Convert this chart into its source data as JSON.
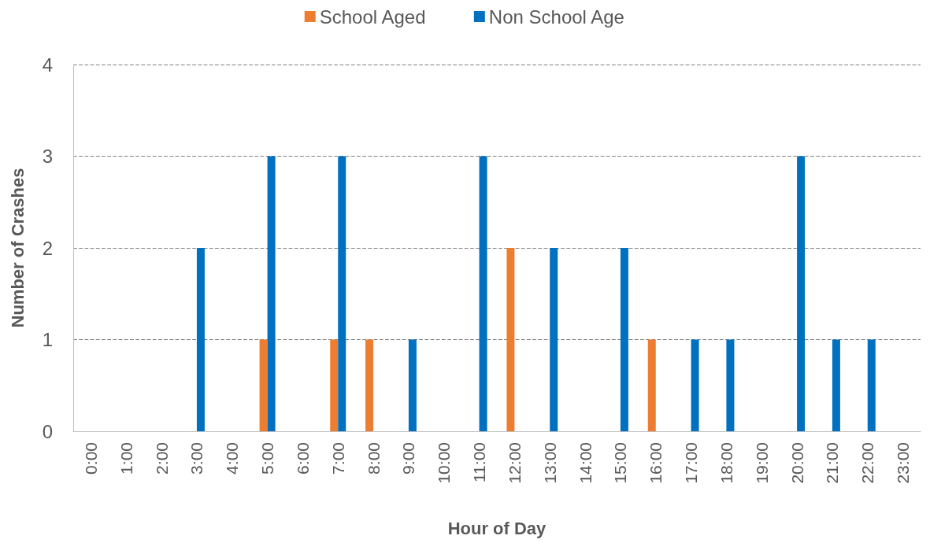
{
  "chart_data": {
    "type": "bar",
    "categories": [
      "0:00",
      "1:00",
      "2:00",
      "3:00",
      "4:00",
      "5:00",
      "6:00",
      "7:00",
      "8:00",
      "9:00",
      "10:00",
      "11:00",
      "12:00",
      "13:00",
      "14:00",
      "15:00",
      "16:00",
      "17:00",
      "18:00",
      "19:00",
      "20:00",
      "21:00",
      "22:00",
      "23:00"
    ],
    "series": [
      {
        "name": "School Aged",
        "color": "#ed7d31",
        "values": [
          0,
          0,
          0,
          0,
          0,
          1,
          0,
          1,
          1,
          0,
          0,
          0,
          2,
          0,
          0,
          0,
          1,
          0,
          0,
          0,
          0,
          0,
          0,
          0
        ]
      },
      {
        "name": "Non School Age",
        "color": "#0070c0",
        "values": [
          0,
          0,
          0,
          2,
          0,
          3,
          0,
          3,
          0,
          1,
          0,
          3,
          0,
          2,
          0,
          2,
          0,
          1,
          1,
          0,
          3,
          1,
          1,
          0
        ]
      }
    ],
    "xlabel": "Hour of Day",
    "ylabel": "Number of Crashes",
    "ylim": [
      0,
      4
    ],
    "yticks": [
      0,
      1,
      2,
      3,
      4
    ],
    "grid": "y",
    "legend": "top"
  }
}
